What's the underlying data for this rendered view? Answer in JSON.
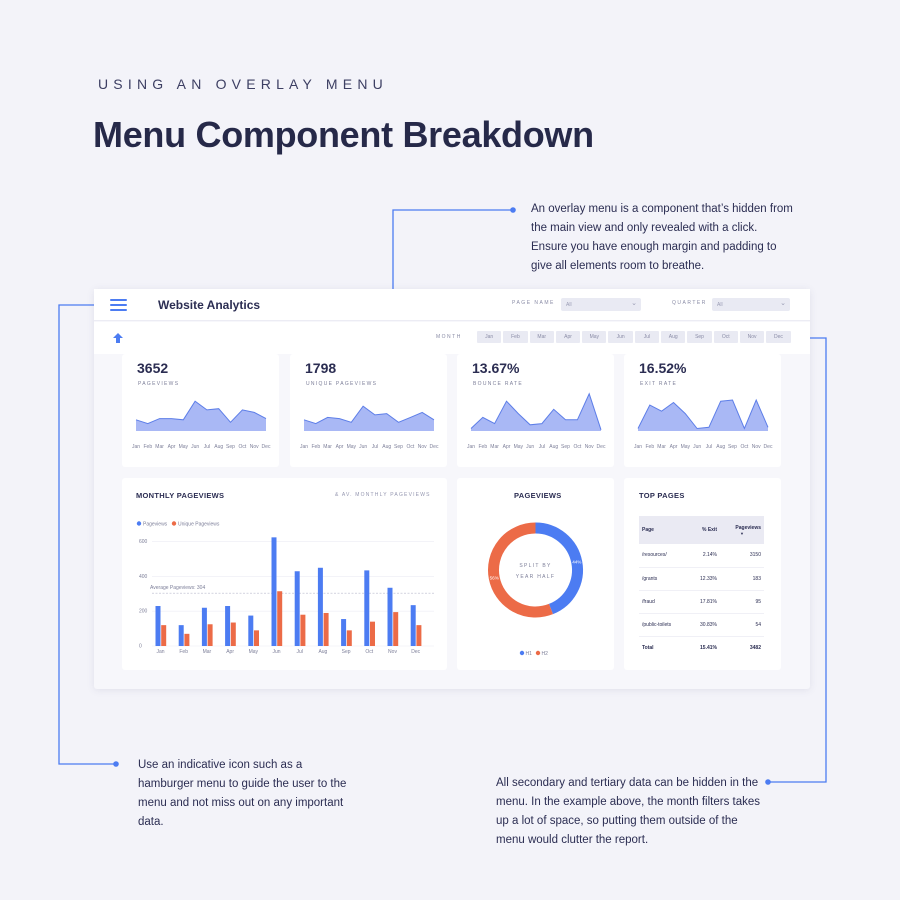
{
  "header": {
    "eyebrow": "USING AN OVERLAY MENU",
    "title": "Menu Component Breakdown"
  },
  "annotations": {
    "overlay": "An overlay menu is a component that’s hidden from the main view and only revealed with a click. Ensure you have enough margin and padding to give all elements room to breathe.",
    "icon": "Use an indicative icon such as a hamburger menu to guide the user to the menu and not miss out on any important data.",
    "secondary": "All secondary and tertiary data can be hidden in the menu. In the example above, the month filters takes up a lot of space, so putting them outside of the menu would clutter the report."
  },
  "dashboard": {
    "app_title": "Website Analytics",
    "filters": {
      "page_name_label": "PAGE NAME",
      "page_name_value": "All",
      "quarter_label": "QUARTER",
      "quarter_value": "All",
      "month_label": "MONTH",
      "months": [
        "Jan",
        "Feb",
        "Mar",
        "Apr",
        "May",
        "Jun",
        "Jul",
        "Aug",
        "Sep",
        "Oct",
        "Nov",
        "Dec"
      ]
    },
    "icons": {
      "menu": "hamburger-menu-icon",
      "up": "upload-arrow-icon",
      "dropdown": "chevron-down-icon"
    },
    "kpis": [
      {
        "value": "3652",
        "label": "PAGEVIEWS",
        "trend": [
          18,
          12,
          20,
          20,
          18,
          48,
          34,
          36,
          14,
          34,
          30,
          20
        ]
      },
      {
        "value": "1798",
        "label": "UNIQUE PAGEVIEWS",
        "trend": [
          18,
          12,
          22,
          20,
          14,
          40,
          26,
          28,
          14,
          22,
          30,
          18
        ]
      },
      {
        "value": "13.67%",
        "label": "BOUNCE RATE",
        "trend": [
          4,
          22,
          12,
          48,
          28,
          10,
          12,
          35,
          18,
          18,
          60,
          2
        ]
      },
      {
        "value": "16.52%",
        "label": "EXIT RATE",
        "trend": [
          4,
          42,
          32,
          46,
          28,
          4,
          6,
          48,
          50,
          4,
          50,
          6
        ]
      }
    ],
    "months_axis": [
      "Jan",
      "Feb",
      "Mar",
      "Apr",
      "May",
      "Jun",
      "Jul",
      "Aug",
      "Sep",
      "Oct",
      "Nov",
      "Dec"
    ],
    "colors": {
      "accent": "#4c7cf2",
      "secondary": "#ec6b47",
      "area": "#a9b8f5",
      "line": "#5d7ee8"
    },
    "monthly": {
      "title": "MONTHLY PAGEVIEWS",
      "subtitle": "& AV. MONTHLY PAGEVIEWS",
      "average_label": "Average Pageviews: 304"
    },
    "donut": {
      "title": "PAGEVIEWS",
      "center_line1": "SPLIT BY",
      "center_line2": "YEAR HALF",
      "h1_label": "44%",
      "h2_label": "56%"
    },
    "top_pages": {
      "title": "TOP PAGES",
      "headers": [
        "Page",
        "% Exit",
        "Pageviews"
      ],
      "rows": [
        [
          "/resources/",
          "2.14%",
          "3150"
        ],
        [
          "/grants",
          "12.33%",
          "183"
        ],
        [
          "/fraud",
          "17.81%",
          "95"
        ],
        [
          "/public-toilets",
          "30.83%",
          "54"
        ]
      ],
      "total": [
        "Total",
        "15.41%",
        "3482"
      ]
    }
  },
  "chart_data": [
    {
      "type": "bar",
      "title": "MONTHLY PAGEVIEWS",
      "subtitle": "& AV. MONTHLY PAGEVIEWS",
      "categories": [
        "Jan",
        "Feb",
        "Mar",
        "Apr",
        "May",
        "Jun",
        "Jul",
        "Aug",
        "Sep",
        "Oct",
        "Nov",
        "Dec"
      ],
      "series": [
        {
          "name": "Pageviews",
          "values": [
            230,
            120,
            220,
            230,
            175,
            625,
            430,
            450,
            155,
            435,
            335,
            235
          ]
        },
        {
          "name": "Unique Pageviews",
          "values": [
            120,
            70,
            125,
            135,
            90,
            315,
            180,
            190,
            90,
            140,
            195,
            120
          ]
        }
      ],
      "reference_line": {
        "label": "Average Pageviews: 304",
        "value": 304
      },
      "yticks": [
        0,
        200,
        400,
        600
      ],
      "ylim": [
        0,
        650
      ],
      "legend": "top-left"
    },
    {
      "type": "pie",
      "title": "PAGEVIEWS",
      "labels": [
        "H1",
        "H2"
      ],
      "values": [
        44,
        56
      ]
    }
  ]
}
